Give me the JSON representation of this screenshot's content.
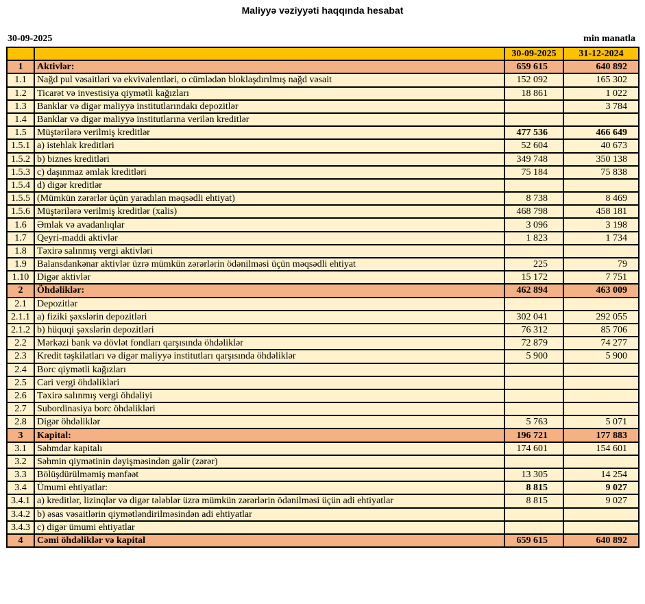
{
  "title": "Maliyyə vəziyyəti haqqında hesabat",
  "report_date": "30-09-2025",
  "unit": "min manatla",
  "colors": {
    "header": "#FFC000",
    "section": "#F4B183",
    "row": "#FFF2CC"
  },
  "columns": [
    "30-09-2025",
    "31-12-2024"
  ],
  "rows": [
    {
      "no": "1",
      "label": "Aktivlər:",
      "v1": "659 615",
      "v2": "640 892",
      "type": "section"
    },
    {
      "no": "1.1",
      "label": "Nağd pul vəsaitləri və  ekvivalentləri, o cümlədən bloklaşdırılmış nağd vəsait",
      "v1": "152 092",
      "v2": "165 302"
    },
    {
      "no": "1.2",
      "label": "Ticarət və investisiya qiymətli kağızları",
      "v1": "18 861",
      "v2": "1 022"
    },
    {
      "no": "1.3",
      "label": "Banklar və digər maliyyə institutlarındakı depozitlər",
      "v1": "",
      "v2": "3 784"
    },
    {
      "no": "1.4",
      "label": "Banklar və digər maliyyə institutlarına verilən kreditlər",
      "v1": "",
      "v2": ""
    },
    {
      "no": "1.5",
      "label": "Müştərilərə verilmiş kreditlər",
      "v1": "477 536",
      "v2": "466 649",
      "type": "boldvals"
    },
    {
      "no": "1.5.1",
      "label": "a) istehlak kreditləri",
      "v1": "52 604",
      "v2": "40 673"
    },
    {
      "no": "1.5.2",
      "label": "b) biznes kreditləri",
      "v1": "349 748",
      "v2": "350 138"
    },
    {
      "no": "1.5.3",
      "label": "c) daşınmaz əmlak kreditləri",
      "v1": "75 184",
      "v2": "75 838"
    },
    {
      "no": "1.5.4",
      "label": "d) digər kreditlər",
      "v1": "",
      "v2": ""
    },
    {
      "no": "1.5.5",
      "label": "(Mümkün zərərlər üçün yaradılan məqsədli ehtiyat)",
      "v1": "8 738",
      "v2": "8 469"
    },
    {
      "no": "1.5.6",
      "label": "Müştərilərə verilmiş kreditlər (xalis)",
      "v1": "468 798",
      "v2": "458 181"
    },
    {
      "no": "1.6",
      "label": "Əmlak və avadanlıqlar",
      "v1": "3 096",
      "v2": "3 198"
    },
    {
      "no": "1.7",
      "label": "Qeyri-maddi aktivlər",
      "v1": "1 823",
      "v2": "1 734"
    },
    {
      "no": "1.8",
      "label": "Təxirə salınmış vergi aktivləri",
      "v1": "",
      "v2": ""
    },
    {
      "no": "1.9",
      "label": "Balansdankənar aktivlər üzrə mümkün zərərlərin ödənilməsi üçün məqsədli ehtiyat",
      "v1": "225",
      "v2": "79"
    },
    {
      "no": "1.10",
      "label": "Digər aktivlər",
      "v1": "15 172",
      "v2": "7 751"
    },
    {
      "no": "2",
      "label": "Öhdəliklər:",
      "v1": "462 894",
      "v2": "463 009",
      "type": "section"
    },
    {
      "no": "2.1",
      "label": "Depozitlər",
      "v1": "",
      "v2": ""
    },
    {
      "no": "2.1.1",
      "label": "a) fiziki şəxslərin depozitləri",
      "v1": "302 041",
      "v2": "292 055"
    },
    {
      "no": "2.1.2",
      "label": "b) hüquqi şəxslərin depozitləri",
      "v1": "76 312",
      "v2": "85 706"
    },
    {
      "no": "2.2",
      "label": "Mərkəzi bank və dövlət fondları qarşısında öhdəliklər",
      "v1": "72 879",
      "v2": "74 277"
    },
    {
      "no": "2.3",
      "label": "Kredit təşkilatları və digər maliyyə institutları qarşısında öhdəliklər",
      "v1": "5 900",
      "v2": "5 900"
    },
    {
      "no": "2.4",
      "label": "Borc qiymətli kağızları",
      "v1": "",
      "v2": ""
    },
    {
      "no": "2.5",
      "label": "Cari vergi öhdəlikləri",
      "v1": "",
      "v2": ""
    },
    {
      "no": "2.6",
      "label": "Təxirə salınmış vergi öhdəliyi",
      "v1": "",
      "v2": ""
    },
    {
      "no": "2.7",
      "label": "Subordinasiya borc öhdəlikləri",
      "v1": "",
      "v2": ""
    },
    {
      "no": "2.8",
      "label": "Digər öhdəliklər",
      "v1": "5 763",
      "v2": "5 071"
    },
    {
      "no": "3",
      "label": "Kapital:",
      "v1": "196 721",
      "v2": "177 883",
      "type": "section"
    },
    {
      "no": "3.1",
      "label": "Səhmdar kapitalı",
      "v1": "174 601",
      "v2": "154 601"
    },
    {
      "no": "3.2",
      "label": "Səhmin qiymətinin dəyişməsindən gəlir (zərər)",
      "v1": "",
      "v2": ""
    },
    {
      "no": "3.3",
      "label": "Bölüşdürülməmiş mənfəət",
      "v1": "13 305",
      "v2": "14 254"
    },
    {
      "no": "3.4",
      "label": "Ümumi ehtiyatlar:",
      "v1": "8 815",
      "v2": "9 027",
      "type": "boldvals"
    },
    {
      "no": "3.4.1",
      "label": "a) kreditlər, lizinqlər və digər tələblər üzrə mümkün zərərlərin ödənilməsi üçün adi ehtiyatlar",
      "v1": "8 815",
      "v2": "9 027"
    },
    {
      "no": "3.4.2",
      "label": "b) əsas vəsaitlərin qiymətləndirilməsindən adi ehtiyatlar",
      "v1": "",
      "v2": ""
    },
    {
      "no": "3.4.3",
      "label": "c) digər ümumi ehtiyatlar",
      "v1": "",
      "v2": ""
    },
    {
      "no": "4",
      "label": "Cəmi öhdəliklər və kapital",
      "v1": "659 615",
      "v2": "640 892",
      "type": "section"
    }
  ]
}
